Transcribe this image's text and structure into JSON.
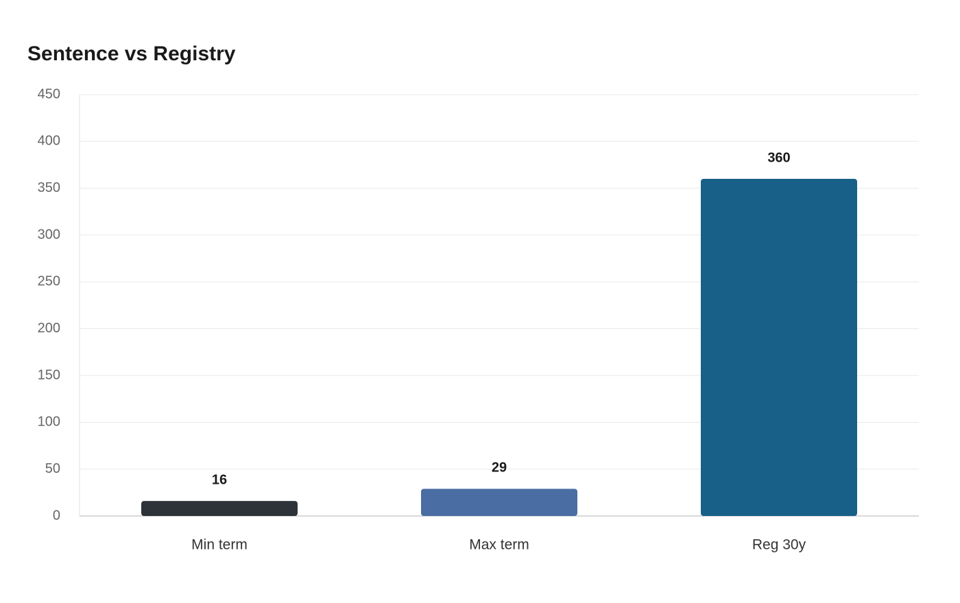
{
  "chart_data": {
    "type": "bar",
    "title": "Sentence vs Registry",
    "categories": [
      "Min term",
      "Max term",
      "Reg 30y"
    ],
    "values": [
      16,
      29,
      360
    ],
    "colors": [
      "#2d3338",
      "#4a6da3",
      "#186087"
    ],
    "ylim": [
      0,
      450
    ],
    "yticks": [
      0,
      50,
      100,
      150,
      200,
      250,
      300,
      350,
      400,
      450
    ],
    "grid": true
  }
}
